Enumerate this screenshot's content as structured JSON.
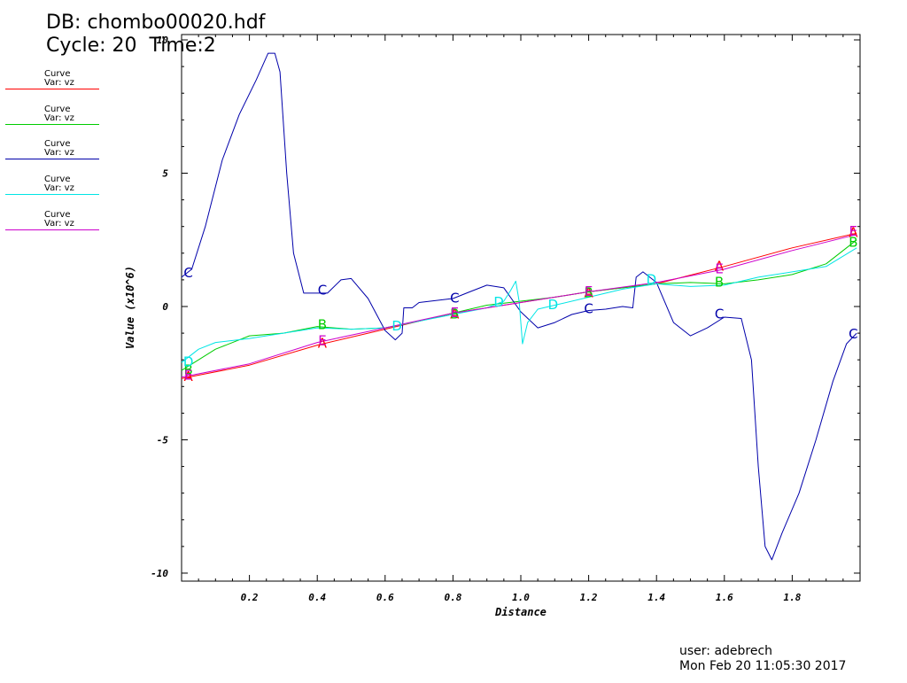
{
  "header": {
    "db": "DB: chombo00020.hdf",
    "cycle": "Cycle: 20",
    "time": "Time:2"
  },
  "legend": [
    {
      "title": "Curve",
      "var": "Var: vz",
      "color": "#ff0000"
    },
    {
      "title": "Curve",
      "var": "Var: vz",
      "color": "#00cc00"
    },
    {
      "title": "Curve",
      "var": "Var: vz",
      "color": "#0000aa"
    },
    {
      "title": "Curve",
      "var": "Var: vz",
      "color": "#00e5e5"
    },
    {
      "title": "Curve",
      "var": "Var: vz",
      "color": "#cc00cc"
    }
  ],
  "footer": {
    "user": "user: adebrech",
    "date": "Mon Feb 20 11:05:30 2017"
  },
  "chart_data": {
    "type": "line",
    "xlabel": "Distance",
    "ylabel": "Value (x10^6)",
    "xlim": [
      0,
      2
    ],
    "ylim": [
      -10.3,
      10.2
    ],
    "xticks": [
      0.2,
      0.4,
      0.6,
      0.8,
      1.0,
      1.2,
      1.4,
      1.6,
      1.8
    ],
    "xtick_labels": [
      "0.2",
      "0.4",
      "0.6",
      "0.8",
      "1.0",
      "1.2",
      "1.4",
      "1.6",
      "1.8"
    ],
    "yticks": [
      -10,
      -5,
      0,
      5,
      10
    ],
    "ytick_labels": [
      "-10",
      "-5",
      "0",
      "5",
      "10"
    ],
    "series": [
      {
        "marker": "A",
        "color": "#ff0000",
        "points": [
          [
            0,
            -2.7
          ],
          [
            0.2,
            -2.2
          ],
          [
            0.4,
            -1.45
          ],
          [
            0.6,
            -0.85
          ],
          [
            0.8,
            -0.25
          ],
          [
            1.0,
            0.15
          ],
          [
            1.2,
            0.55
          ],
          [
            1.4,
            0.85
          ],
          [
            1.6,
            1.5
          ],
          [
            1.8,
            2.2
          ],
          [
            1.99,
            2.75
          ]
        ],
        "markers": [
          [
            0.02,
            -2.6
          ],
          [
            0.415,
            -1.35
          ],
          [
            0.805,
            -0.25
          ],
          [
            1.2,
            0.55
          ],
          [
            1.585,
            1.55
          ],
          [
            1.98,
            2.8
          ]
        ]
      },
      {
        "marker": "B",
        "color": "#00cc00",
        "points": [
          [
            0,
            -2.4
          ],
          [
            0.1,
            -1.6
          ],
          [
            0.2,
            -1.1
          ],
          [
            0.3,
            -1.0
          ],
          [
            0.4,
            -0.75
          ],
          [
            0.5,
            -0.85
          ],
          [
            0.6,
            -0.8
          ],
          [
            0.7,
            -0.55
          ],
          [
            0.8,
            -0.25
          ],
          [
            0.9,
            0.05
          ],
          [
            1.0,
            0.2
          ],
          [
            1.1,
            0.35
          ],
          [
            1.2,
            0.55
          ],
          [
            1.3,
            0.7
          ],
          [
            1.4,
            0.85
          ],
          [
            1.5,
            0.9
          ],
          [
            1.6,
            0.85
          ],
          [
            1.7,
            1.0
          ],
          [
            1.8,
            1.2
          ],
          [
            1.9,
            1.6
          ],
          [
            1.99,
            2.5
          ]
        ],
        "markers": [
          [
            0.02,
            -2.35
          ],
          [
            0.415,
            -0.65
          ],
          [
            0.805,
            -0.25
          ],
          [
            1.2,
            0.55
          ],
          [
            1.585,
            0.95
          ],
          [
            1.98,
            2.45
          ]
        ]
      },
      {
        "marker": "C",
        "color": "#0000aa",
        "points": [
          [
            0,
            1.1
          ],
          [
            0.03,
            1.4
          ],
          [
            0.07,
            3.0
          ],
          [
            0.12,
            5.5
          ],
          [
            0.17,
            7.2
          ],
          [
            0.22,
            8.5
          ],
          [
            0.255,
            9.5
          ],
          [
            0.275,
            9.5
          ],
          [
            0.29,
            8.8
          ],
          [
            0.31,
            5.0
          ],
          [
            0.33,
            2.0
          ],
          [
            0.36,
            0.5
          ],
          [
            0.4,
            0.5
          ],
          [
            0.43,
            0.5
          ],
          [
            0.47,
            1.0
          ],
          [
            0.5,
            1.05
          ],
          [
            0.55,
            0.3
          ],
          [
            0.6,
            -0.9
          ],
          [
            0.63,
            -1.25
          ],
          [
            0.65,
            -1.0
          ],
          [
            0.655,
            -0.05
          ],
          [
            0.68,
            -0.05
          ],
          [
            0.7,
            0.15
          ],
          [
            0.8,
            0.3
          ],
          [
            0.85,
            0.55
          ],
          [
            0.9,
            0.8
          ],
          [
            0.95,
            0.7
          ],
          [
            1.0,
            -0.2
          ],
          [
            1.05,
            -0.8
          ],
          [
            1.1,
            -0.6
          ],
          [
            1.15,
            -0.3
          ],
          [
            1.2,
            -0.15
          ],
          [
            1.25,
            -0.1
          ],
          [
            1.3,
            0.0
          ],
          [
            1.33,
            -0.05
          ],
          [
            1.34,
            1.1
          ],
          [
            1.36,
            1.3
          ],
          [
            1.4,
            0.9
          ],
          [
            1.45,
            -0.6
          ],
          [
            1.5,
            -1.1
          ],
          [
            1.55,
            -0.8
          ],
          [
            1.6,
            -0.4
          ],
          [
            1.65,
            -0.45
          ],
          [
            1.68,
            -2.0
          ],
          [
            1.7,
            -6.0
          ],
          [
            1.72,
            -9.0
          ],
          [
            1.74,
            -9.5
          ],
          [
            1.77,
            -8.5
          ],
          [
            1.82,
            -7.0
          ],
          [
            1.87,
            -5.0
          ],
          [
            1.92,
            -2.8
          ],
          [
            1.96,
            -1.4
          ],
          [
            1.99,
            -1.0
          ]
        ],
        "markers": [
          [
            0.02,
            1.3
          ],
          [
            0.415,
            0.65
          ],
          [
            0.805,
            0.35
          ],
          [
            1.2,
            -0.05
          ],
          [
            1.585,
            -0.25
          ],
          [
            1.98,
            -1.0
          ]
        ]
      },
      {
        "marker": "D",
        "color": "#00e5e5",
        "points": [
          [
            0,
            -2.1
          ],
          [
            0.05,
            -1.6
          ],
          [
            0.1,
            -1.35
          ],
          [
            0.2,
            -1.2
          ],
          [
            0.3,
            -1.0
          ],
          [
            0.4,
            -0.8
          ],
          [
            0.5,
            -0.85
          ],
          [
            0.6,
            -0.8
          ],
          [
            0.7,
            -0.55
          ],
          [
            0.8,
            -0.3
          ],
          [
            0.9,
            -0.05
          ],
          [
            0.95,
            0.2
          ],
          [
            0.97,
            0.6
          ],
          [
            0.985,
            0.95
          ],
          [
            0.995,
            0.2
          ],
          [
            1.005,
            -1.4
          ],
          [
            1.02,
            -0.6
          ],
          [
            1.05,
            -0.1
          ],
          [
            1.1,
            0.05
          ],
          [
            1.2,
            0.35
          ],
          [
            1.3,
            0.65
          ],
          [
            1.4,
            0.85
          ],
          [
            1.5,
            0.75
          ],
          [
            1.6,
            0.8
          ],
          [
            1.7,
            1.1
          ],
          [
            1.8,
            1.3
          ],
          [
            1.9,
            1.5
          ],
          [
            1.99,
            2.2
          ]
        ],
        "markers": [
          [
            0.02,
            -2.05
          ],
          [
            0.635,
            -0.7
          ],
          [
            0.935,
            0.2
          ],
          [
            1.095,
            0.1
          ],
          [
            1.385,
            1.05
          ]
        ]
      },
      {
        "marker": "E",
        "color": "#cc00cc",
        "points": [
          [
            0,
            -2.65
          ],
          [
            0.2,
            -2.15
          ],
          [
            0.4,
            -1.35
          ],
          [
            0.6,
            -0.8
          ],
          [
            0.8,
            -0.25
          ],
          [
            1.0,
            0.15
          ],
          [
            1.2,
            0.55
          ],
          [
            1.4,
            0.9
          ],
          [
            1.6,
            1.4
          ],
          [
            1.8,
            2.1
          ],
          [
            1.99,
            2.7
          ]
        ],
        "markers": [
          [
            0.02,
            -2.55
          ],
          [
            0.415,
            -1.25
          ],
          [
            0.805,
            -0.2
          ],
          [
            1.2,
            0.6
          ],
          [
            1.585,
            1.45
          ],
          [
            1.98,
            2.85
          ]
        ]
      }
    ]
  }
}
